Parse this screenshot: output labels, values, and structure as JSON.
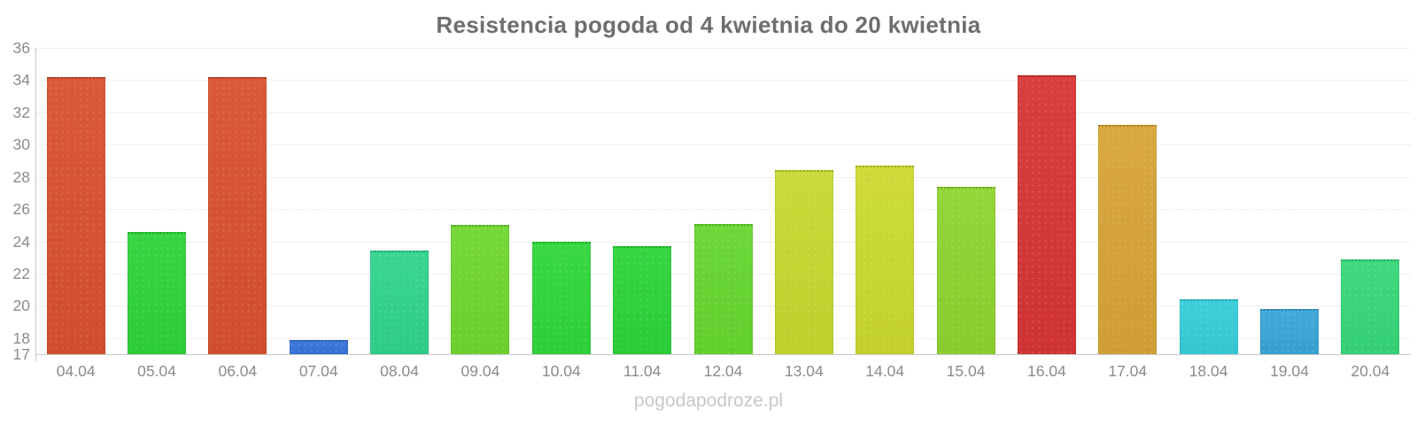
{
  "page": {
    "background": "#ffffff",
    "watermark": "pogodapodroze.pl"
  },
  "chart_data": {
    "type": "bar",
    "title": "Resistencia pogoda od 4 kwietnia do 20 kwietnia",
    "categories": [
      "04.04",
      "05.04",
      "06.04",
      "07.04",
      "08.04",
      "09.04",
      "10.04",
      "11.04",
      "12.04",
      "13.04",
      "14.04",
      "15.04",
      "16.04",
      "17.04",
      "18.04",
      "19.04",
      "20.04"
    ],
    "values": [
      34.2,
      24.6,
      34.2,
      17.9,
      23.4,
      25.0,
      24.0,
      23.7,
      25.1,
      28.4,
      28.7,
      27.4,
      34.3,
      31.2,
      20.4,
      19.8,
      22.9
    ],
    "bar_colors": [
      "#d8502f",
      "#2ed339",
      "#d8502f",
      "#3673d9",
      "#2fd38d",
      "#6fd62e",
      "#2ed63a",
      "#2bd338",
      "#65d62e",
      "#c6d72e",
      "#cbd92e",
      "#8cd42e",
      "#d63434",
      "#d7a335",
      "#34cdd8",
      "#38a4d8",
      "#35d678"
    ],
    "xlabel": "",
    "ylabel": "",
    "ylim": [
      17,
      36
    ],
    "yticks": [
      36,
      34,
      32,
      30,
      28,
      26,
      24,
      22,
      20,
      18,
      17
    ],
    "grid": "horizontal",
    "legend": "none",
    "styles": {
      "title_color": "#6e6e6e",
      "axis_label_color": "#8b8b8b",
      "gridline_color": "#e4e4e4",
      "axis_line_color": "#c9c9c9",
      "watermark_color": "#c8c8c8"
    }
  }
}
